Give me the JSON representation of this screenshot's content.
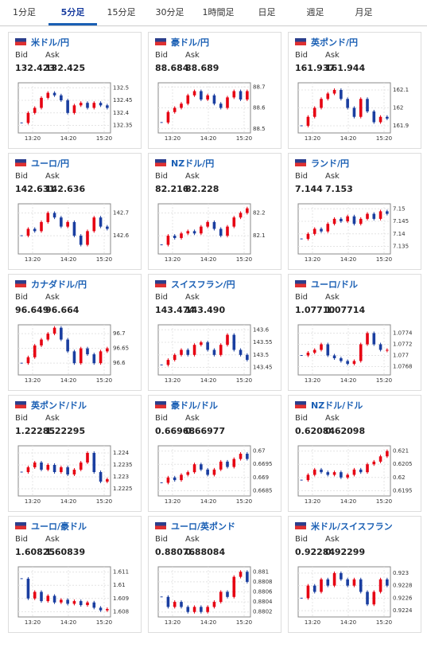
{
  "tabs": [
    "1分足",
    "5分足",
    "15分足",
    "30分足",
    "1時間足",
    "日足",
    "週足",
    "月足"
  ],
  "active_tab": 1,
  "bid_label": "Bid",
  "ask_label": "Ask",
  "xlabels": [
    "13:20",
    "14:20",
    "15:20"
  ],
  "charts": [
    {
      "name": "米ドル/円",
      "bid": "132.423",
      "ask": "132.425",
      "ylim": [
        132.32,
        132.52
      ],
      "yticks": [
        132.5,
        132.45,
        132.4,
        132.35
      ],
      "closes": [
        132.36,
        132.4,
        132.42,
        132.46,
        132.48,
        132.47,
        132.45,
        132.4,
        132.43,
        132.44,
        132.42,
        132.44,
        132.43,
        132.42
      ]
    },
    {
      "name": "豪ドル/円",
      "bid": "88.684",
      "ask": "88.689",
      "ylim": [
        88.48,
        88.72
      ],
      "yticks": [
        88.7,
        88.6,
        88.5
      ],
      "closes": [
        88.53,
        88.58,
        88.6,
        88.62,
        88.66,
        88.68,
        88.64,
        88.66,
        88.62,
        88.6,
        88.65,
        88.68,
        88.64,
        88.68
      ]
    },
    {
      "name": "英ポンド/円",
      "bid": "161.937",
      "ask": "161.944",
      "ylim": [
        161.86,
        162.14
      ],
      "yticks": [
        162.1,
        162,
        161.9
      ],
      "closes": [
        161.9,
        161.95,
        162,
        162.05,
        162.08,
        162.1,
        162.05,
        162,
        161.95,
        162.05,
        161.98,
        161.92,
        161.95,
        161.94
      ]
    },
    {
      "name": "ユーロ/円",
      "bid": "142.631",
      "ask": "142.636",
      "ylim": [
        142.52,
        142.74
      ],
      "yticks": [
        142.7,
        142.6
      ],
      "closes": [
        142.6,
        142.63,
        142.62,
        142.66,
        142.7,
        142.68,
        142.64,
        142.66,
        142.6,
        142.56,
        142.62,
        142.68,
        142.64,
        142.63
      ]
    },
    {
      "name": "NZドル/円",
      "bid": "82.216",
      "ask": "82.228",
      "ylim": [
        82.02,
        82.24
      ],
      "yticks": [
        82.2,
        82.1
      ],
      "closes": [
        82.06,
        82.1,
        82.09,
        82.11,
        82.12,
        82.11,
        82.14,
        82.16,
        82.13,
        82.1,
        82.14,
        82.18,
        82.2,
        82.22
      ]
    },
    {
      "name": "ランド/円",
      "bid": "7.144",
      "ask": "7.153",
      "ylim": [
        7.132,
        7.152
      ],
      "yticks": [
        7.15,
        7.145,
        7.14,
        7.135
      ],
      "closes": [
        7.138,
        7.14,
        7.142,
        7.141,
        7.144,
        7.146,
        7.145,
        7.147,
        7.144,
        7.146,
        7.148,
        7.146,
        7.149,
        7.148
      ]
    },
    {
      "name": "カナダドル/円",
      "bid": "96.649",
      "ask": "96.664",
      "ylim": [
        96.56,
        96.73
      ],
      "yticks": [
        96.7,
        96.65,
        96.6
      ],
      "closes": [
        96.6,
        96.62,
        96.66,
        96.68,
        96.7,
        96.72,
        96.68,
        96.64,
        96.6,
        96.65,
        96.63,
        96.6,
        96.64,
        96.65
      ]
    },
    {
      "name": "スイスフラン/円",
      "bid": "143.474",
      "ask": "143.490",
      "ylim": [
        143.42,
        143.62
      ],
      "yticks": [
        143.6,
        143.55,
        143.5,
        143.45
      ],
      "closes": [
        143.46,
        143.48,
        143.5,
        143.52,
        143.5,
        143.54,
        143.55,
        143.52,
        143.5,
        143.54,
        143.58,
        143.52,
        143.5,
        143.48
      ]
    },
    {
      "name": "ユーロ/ドル",
      "bid": "1.07710",
      "ask": "1.07714",
      "ylim": [
        1.07665,
        1.07755
      ],
      "yticks": [
        1.0774,
        1.0772,
        1.077,
        1.0768
      ],
      "closes": [
        1.077,
        1.07705,
        1.0771,
        1.0772,
        1.077,
        1.07695,
        1.0769,
        1.07685,
        1.0769,
        1.0772,
        1.0774,
        1.0772,
        1.0771,
        1.0771
      ]
    },
    {
      "name": "英ポンド/ドル",
      "bid": "1.22285",
      "ask": "1.22295",
      "ylim": [
        1.2222,
        1.2243
      ],
      "yticks": [
        1.224,
        1.2235,
        1.223,
        1.2225
      ],
      "closes": [
        1.2232,
        1.2234,
        1.2236,
        1.2233,
        1.2235,
        1.2232,
        1.2234,
        1.2231,
        1.2233,
        1.2236,
        1.224,
        1.2232,
        1.2228,
        1.2229
      ]
    },
    {
      "name": "豪ドル/ドル",
      "bid": "0.66968",
      "ask": "0.66977",
      "ylim": [
        0.6683,
        0.6702
      ],
      "yticks": [
        0.67,
        0.6695,
        0.669,
        0.6685
      ],
      "closes": [
        0.6688,
        0.669,
        0.6689,
        0.6691,
        0.6692,
        0.6695,
        0.6693,
        0.6691,
        0.6693,
        0.6696,
        0.6694,
        0.6697,
        0.6699,
        0.6697
      ]
    },
    {
      "name": "NZドル/ドル",
      "bid": "0.62084",
      "ask": "0.62098",
      "ylim": [
        0.6193,
        0.6212
      ],
      "yticks": [
        0.621,
        0.6205,
        0.62,
        0.6195
      ],
      "closes": [
        0.6199,
        0.6201,
        0.6203,
        0.6202,
        0.6201,
        0.6202,
        0.62,
        0.6201,
        0.6203,
        0.6202,
        0.6205,
        0.6206,
        0.6208,
        0.621
      ]
    },
    {
      "name": "ユーロ/豪ドル",
      "bid": "1.60825",
      "ask": "1.60839",
      "ylim": [
        1.6076,
        1.6114
      ],
      "yticks": [
        1.611,
        1.61,
        1.609,
        1.608
      ],
      "closes": [
        1.6105,
        1.609,
        1.6095,
        1.6088,
        1.6092,
        1.6087,
        1.6089,
        1.6086,
        1.6088,
        1.6085,
        1.6087,
        1.6083,
        1.6081,
        1.6082
      ]
    },
    {
      "name": "ユーロ/英ポンド",
      "bid": "0.88076",
      "ask": "0.88084",
      "ylim": [
        0.8801,
        0.8811
      ],
      "yticks": [
        0.881,
        0.8808,
        0.8806,
        0.8804,
        0.8802
      ],
      "closes": [
        0.8805,
        0.8803,
        0.8804,
        0.8803,
        0.8802,
        0.8803,
        0.8802,
        0.8803,
        0.8804,
        0.8806,
        0.8805,
        0.8809,
        0.881,
        0.8808
      ]
    },
    {
      "name": "米ドル/スイスフラン",
      "bid": "0.92284",
      "ask": "0.92299",
      "ylim": [
        0.9223,
        0.9231
      ],
      "yticks": [
        0.923,
        0.9228,
        0.9226,
        0.9224
      ],
      "closes": [
        0.9226,
        0.9228,
        0.9227,
        0.9229,
        0.9228,
        0.923,
        0.9229,
        0.9228,
        0.9229,
        0.9227,
        0.9225,
        0.9227,
        0.9229,
        0.9228
      ]
    }
  ]
}
